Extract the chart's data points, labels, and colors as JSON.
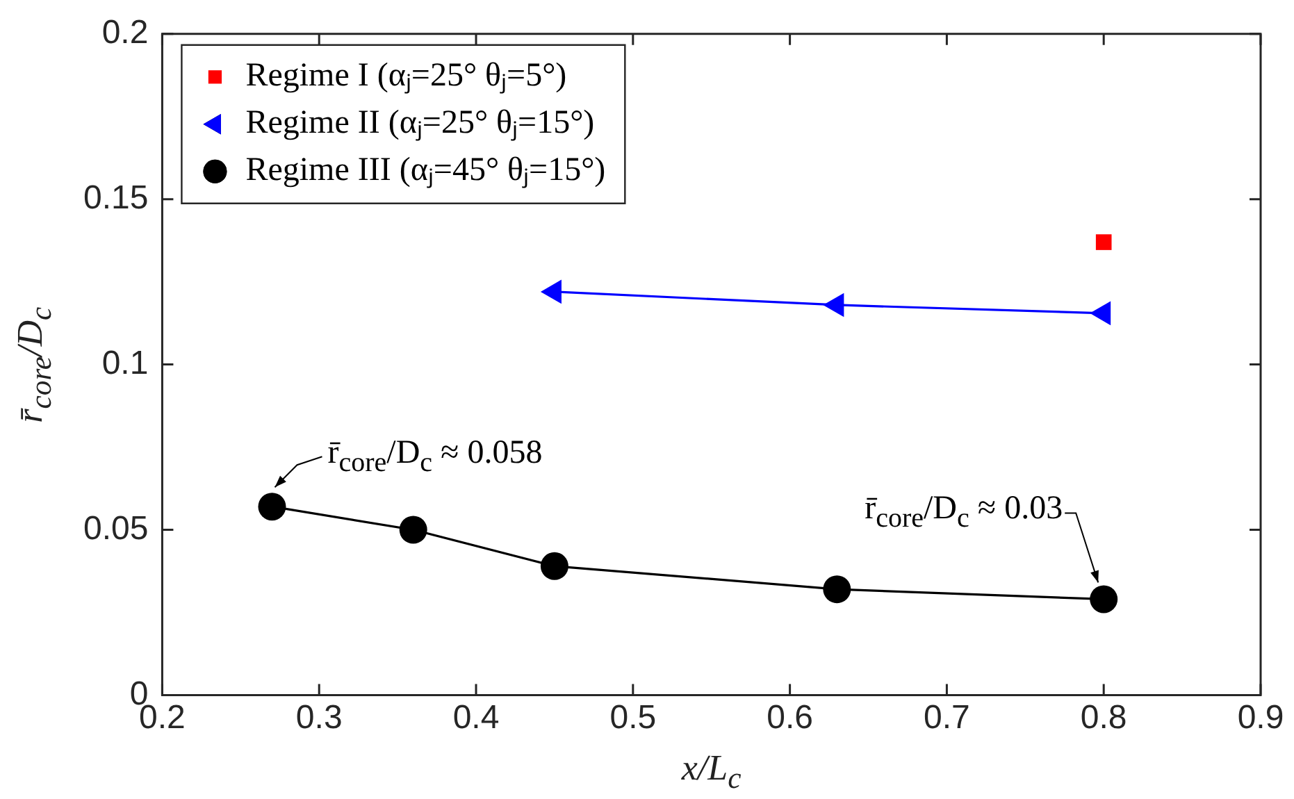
{
  "chart_data": {
    "type": "line",
    "xlabel": "x/L$_{c}$",
    "ylabel": "r̄$_{core}$/D$_{c}$",
    "xlim": [
      0.2,
      0.9
    ],
    "xticks": [
      0.2,
      0.3,
      0.4,
      0.5,
      0.6,
      0.7,
      0.8,
      0.9
    ],
    "ylim": [
      0,
      0.2
    ],
    "yticks": [
      0,
      0.05,
      0.1,
      0.15,
      0.2
    ],
    "grid": false,
    "legend": "top left",
    "series": [
      {
        "name": "Regime I (αⱼ=25° θⱼ=5°)",
        "type": "scatter",
        "marker": "square",
        "color": "#ff0000",
        "x": [
          0.8
        ],
        "values": [
          0.137
        ]
      },
      {
        "name": "Regime II (αⱼ=25° θⱼ=15°)",
        "type": "line",
        "marker": "triangle",
        "color": "#0000ff",
        "x": [
          0.45,
          0.63,
          0.8
        ],
        "values": [
          0.122,
          0.118,
          0.1155
        ]
      },
      {
        "name": "Regime III (αⱼ=45° θⱼ=15°)",
        "type": "line",
        "marker": "circle",
        "color": "#000000",
        "x": [
          0.27,
          0.36,
          0.45,
          0.63,
          0.8
        ],
        "values": [
          0.057,
          0.05,
          0.039,
          0.032,
          0.029
        ]
      }
    ],
    "annotations": [
      {
        "text": "r̄$_{core}$/D$_{c}$ ≈ 0.058",
        "x": 0.27,
        "y": 0.057
      },
      {
        "text": "r̄$_{core}$/D$_{c}$ ≈ 0.03",
        "x": 0.8,
        "y": 0.029
      }
    ]
  }
}
